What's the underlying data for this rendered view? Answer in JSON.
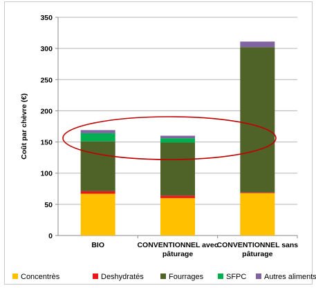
{
  "chart_data": {
    "type": "bar",
    "stacked": true,
    "title": "",
    "xlabel": "",
    "ylabel": "Coût par chèvre (€)",
    "ylim": [
      0,
      350
    ],
    "yticks": [
      0,
      50,
      100,
      150,
      200,
      250,
      300,
      350
    ],
    "grid": true,
    "legend_position": "bottom",
    "categories": [
      [
        "BIO"
      ],
      [
        "CONVENTIONNEL avec",
        "pâturage"
      ],
      [
        "CONVENTIONNEL sans",
        "pâturage"
      ]
    ],
    "series": [
      {
        "name": "Concentrès",
        "color": "#FFC000",
        "values": [
          67,
          60,
          68
        ]
      },
      {
        "name": "Deshydratés",
        "color": "#E8171C",
        "values": [
          4,
          4,
          1
        ]
      },
      {
        "name": "Fourrages",
        "color": "#4F6228",
        "values": [
          80,
          85,
          233
        ]
      },
      {
        "name": "SFPC",
        "color": "#00B050",
        "values": [
          13,
          7,
          0
        ]
      },
      {
        "name": "Autres aliments",
        "color": "#8064A2",
        "values": [
          5,
          4,
          9
        ]
      }
    ],
    "annotations": [
      {
        "type": "ellipse",
        "color": "#C00000",
        "description": "red ellipse highlighting the tops of BIO and CONVENTIONNEL avec pâturage bars"
      }
    ]
  }
}
